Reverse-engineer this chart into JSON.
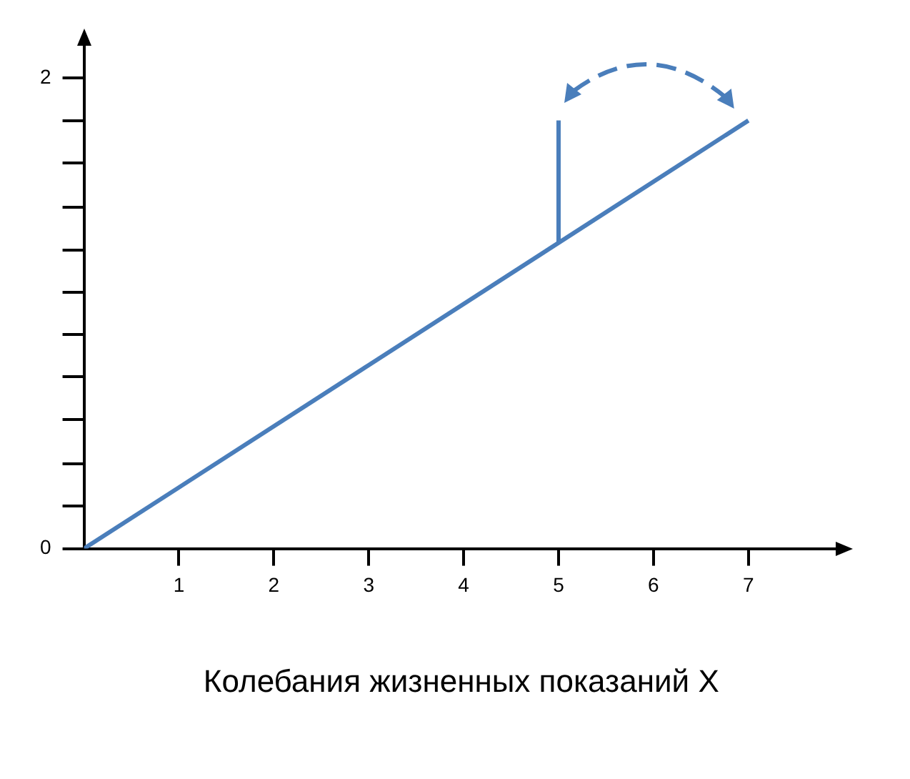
{
  "chart_data": {
    "type": "line",
    "xlabel": "Колебания жизненных показаний X",
    "series": [
      {
        "color": "#4a7ebb",
        "x": [
          0,
          7
        ],
        "values": [
          0,
          1.82
        ]
      },
      {
        "color": "#4a7ebb",
        "x": [
          5,
          5
        ],
        "values": [
          1.3,
          1.82
        ]
      }
    ],
    "xlim": [
      0,
      7.95
    ],
    "ylim": [
      0,
      2.15
    ],
    "xticks": [
      1,
      2,
      3,
      4,
      5,
      6,
      7
    ],
    "yticks": [
      0,
      {
        "value": 0.18,
        "label": null
      },
      {
        "value": 0.36,
        "label": null
      },
      {
        "value": 0.55,
        "label": null
      },
      {
        "value": 0.73,
        "label": null
      },
      {
        "value": 0.91,
        "label": null
      },
      {
        "value": 1.09,
        "label": null
      },
      {
        "value": 1.27,
        "label": null
      },
      {
        "value": 1.45,
        "label": null
      },
      {
        "value": 1.64,
        "label": null
      },
      {
        "value": 1.82,
        "label": null
      },
      {
        "value": 2,
        "label": "2"
      }
    ],
    "grid": false,
    "legend": false,
    "marker": "none",
    "line_style": "solid"
  }
}
